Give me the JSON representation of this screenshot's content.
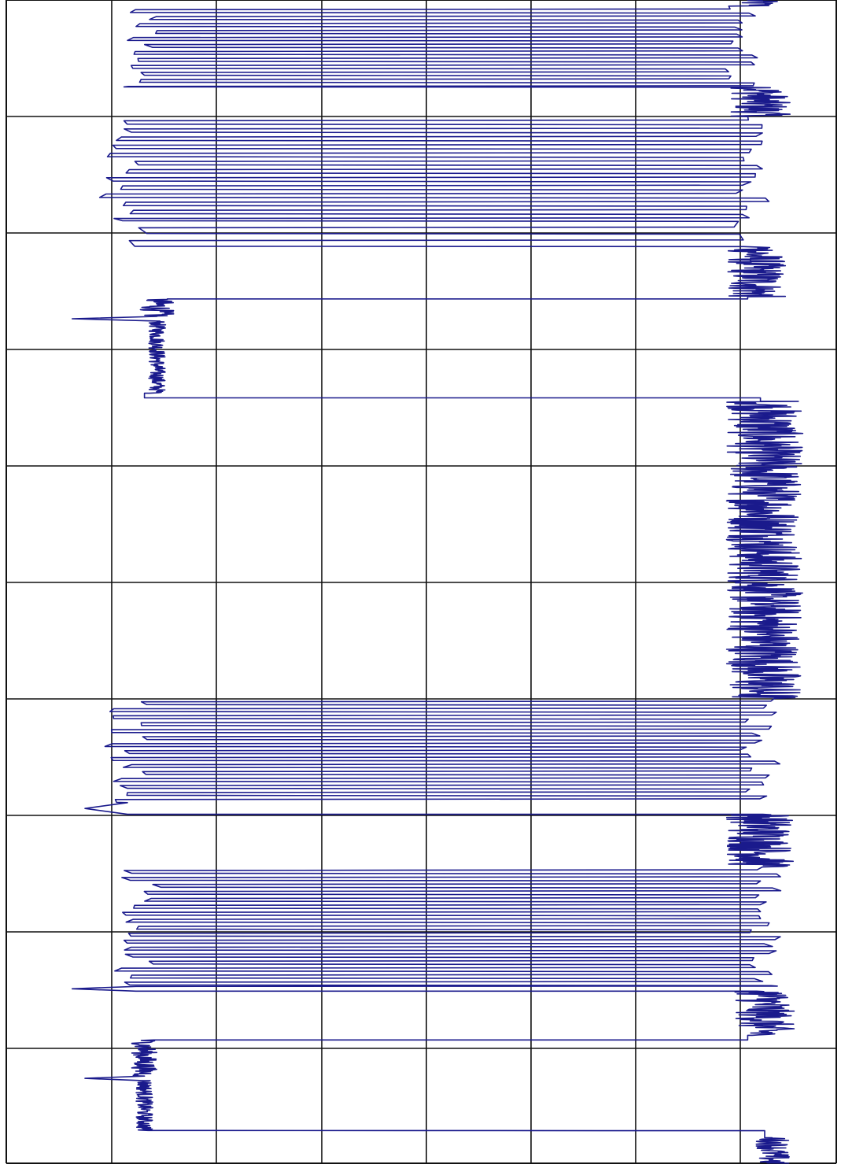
{
  "chart_data": {
    "type": "line",
    "title": "",
    "xlabel": "",
    "ylabel": "",
    "grid": true,
    "axis_labels_shown": false,
    "orientation": "vertical-trace",
    "colors": {
      "trace": "#1a1a8c",
      "grid": "#111111",
      "background": "#ffffff"
    },
    "value_range": [
      -1,
      1
    ],
    "depth_range": [
      0,
      1000
    ],
    "series": [
      {
        "segments": [
          {
            "from": 0,
            "to": 5,
            "kind": "noise",
            "level": 0.78,
            "amp": 0.05
          },
          {
            "from": 5,
            "to": 75,
            "kind": "square",
            "low": -0.66,
            "high": 0.74,
            "period": 6
          },
          {
            "from": 75,
            "to": 100,
            "kind": "noise",
            "level": 0.79,
            "amp": 0.07
          },
          {
            "from": 100,
            "to": 190,
            "kind": "square",
            "low": -0.72,
            "high": 0.78,
            "period": 7
          },
          {
            "from": 190,
            "to": 212,
            "kind": "square",
            "low": -0.68,
            "high": 0.76,
            "period": 11
          },
          {
            "from": 212,
            "to": 255,
            "kind": "noise",
            "level": 0.78,
            "amp": 0.07
          },
          {
            "from": 255,
            "to": 257,
            "kind": "step",
            "value": 0.76
          },
          {
            "from": 257,
            "to": 272,
            "kind": "noise",
            "level": -0.63,
            "amp": 0.04
          },
          {
            "from": 272,
            "to": 276,
            "kind": "spike",
            "level": -0.63,
            "peak": -0.83
          },
          {
            "from": 276,
            "to": 338,
            "kind": "noise",
            "level": -0.63,
            "amp": 0.02
          },
          {
            "from": 338,
            "to": 342,
            "kind": "step",
            "value": -0.66
          },
          {
            "from": 342,
            "to": 345,
            "kind": "step",
            "value": 0.79
          },
          {
            "from": 345,
            "to": 600,
            "kind": "noise",
            "level": 0.8,
            "amp": 0.09
          },
          {
            "from": 600,
            "to": 690,
            "kind": "square",
            "low": -0.7,
            "high": 0.79,
            "period": 6
          },
          {
            "from": 690,
            "to": 700,
            "kind": "spike",
            "level": -0.7,
            "peak": -0.8
          },
          {
            "from": 700,
            "to": 745,
            "kind": "noise",
            "level": 0.79,
            "amp": 0.08
          },
          {
            "from": 745,
            "to": 848,
            "kind": "square",
            "low": -0.68,
            "high": 0.8,
            "period": 6
          },
          {
            "from": 848,
            "to": 852,
            "kind": "spike",
            "level": -0.68,
            "peak": -0.83
          },
          {
            "from": 852,
            "to": 890,
            "kind": "noise",
            "level": 0.8,
            "amp": 0.07
          },
          {
            "from": 890,
            "to": 894,
            "kind": "step",
            "value": 0.76
          },
          {
            "from": 894,
            "to": 925,
            "kind": "noise",
            "level": -0.66,
            "amp": 0.03
          },
          {
            "from": 925,
            "to": 929,
            "kind": "spike",
            "level": -0.66,
            "peak": -0.8
          },
          {
            "from": 929,
            "to": 972,
            "kind": "noise",
            "level": -0.66,
            "amp": 0.02
          },
          {
            "from": 972,
            "to": 978,
            "kind": "step",
            "value": 0.8
          },
          {
            "from": 978,
            "to": 1000,
            "kind": "noise",
            "level": 0.82,
            "amp": 0.04
          }
        ]
      }
    ]
  }
}
